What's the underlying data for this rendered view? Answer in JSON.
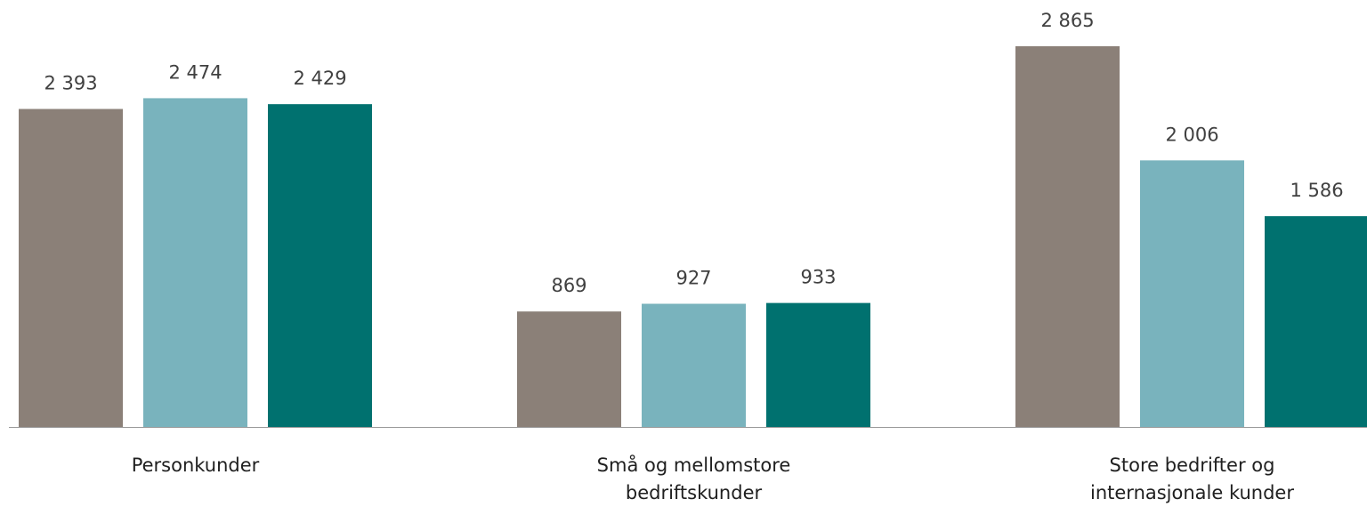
{
  "chart_data": {
    "type": "bar",
    "categories": [
      "Personkunder",
      "Små og mellomstore bedriftskunder",
      "Store bedrifter og internasjonale kunder"
    ],
    "series": [
      {
        "color": "#8b8078",
        "values": [
          2393,
          869,
          2865
        ],
        "value_labels": [
          "2 393",
          "869",
          "2 865"
        ]
      },
      {
        "color": "#79b3bd",
        "values": [
          2474,
          927,
          2006
        ],
        "value_labels": [
          "2 474",
          "927",
          "2 006"
        ]
      },
      {
        "color": "#00716f",
        "values": [
          2429,
          933,
          1586
        ],
        "value_labels": [
          "2 429",
          "933",
          "1 586"
        ]
      }
    ]
  }
}
